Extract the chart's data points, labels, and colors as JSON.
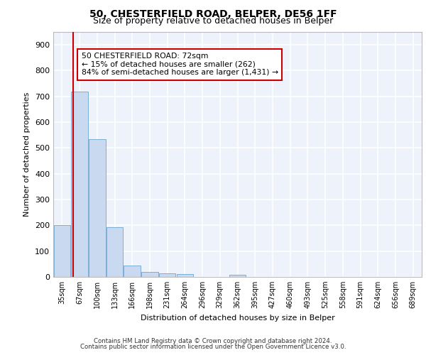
{
  "title1": "50, CHESTERFIELD ROAD, BELPER, DE56 1FF",
  "title2": "Size of property relative to detached houses in Belper",
  "xlabel": "Distribution of detached houses by size in Belper",
  "ylabel": "Number of detached properties",
  "categories": [
    "35sqm",
    "67sqm",
    "100sqm",
    "133sqm",
    "166sqm",
    "198sqm",
    "231sqm",
    "264sqm",
    "296sqm",
    "329sqm",
    "362sqm",
    "395sqm",
    "427sqm",
    "460sqm",
    "493sqm",
    "525sqm",
    "558sqm",
    "591sqm",
    "624sqm",
    "656sqm",
    "689sqm"
  ],
  "values": [
    202,
    718,
    534,
    193,
    43,
    19,
    14,
    10,
    0,
    0,
    9,
    0,
    0,
    0,
    0,
    0,
    0,
    0,
    0,
    0,
    0
  ],
  "bar_color": "#c9d9f0",
  "bar_edge_color": "#7bafd4",
  "vline_color": "#cc0000",
  "annotation_text": "50 CHESTERFIELD ROAD: 72sqm\n← 15% of detached houses are smaller (262)\n84% of semi-detached houses are larger (1,431) →",
  "annotation_box_color": "#cc0000",
  "ylim": [
    0,
    950
  ],
  "yticks": [
    0,
    100,
    200,
    300,
    400,
    500,
    600,
    700,
    800,
    900
  ],
  "background_color": "#eef2fa",
  "grid_color": "#ffffff",
  "footer1": "Contains HM Land Registry data © Crown copyright and database right 2024.",
  "footer2": "Contains public sector information licensed under the Open Government Licence v3.0."
}
